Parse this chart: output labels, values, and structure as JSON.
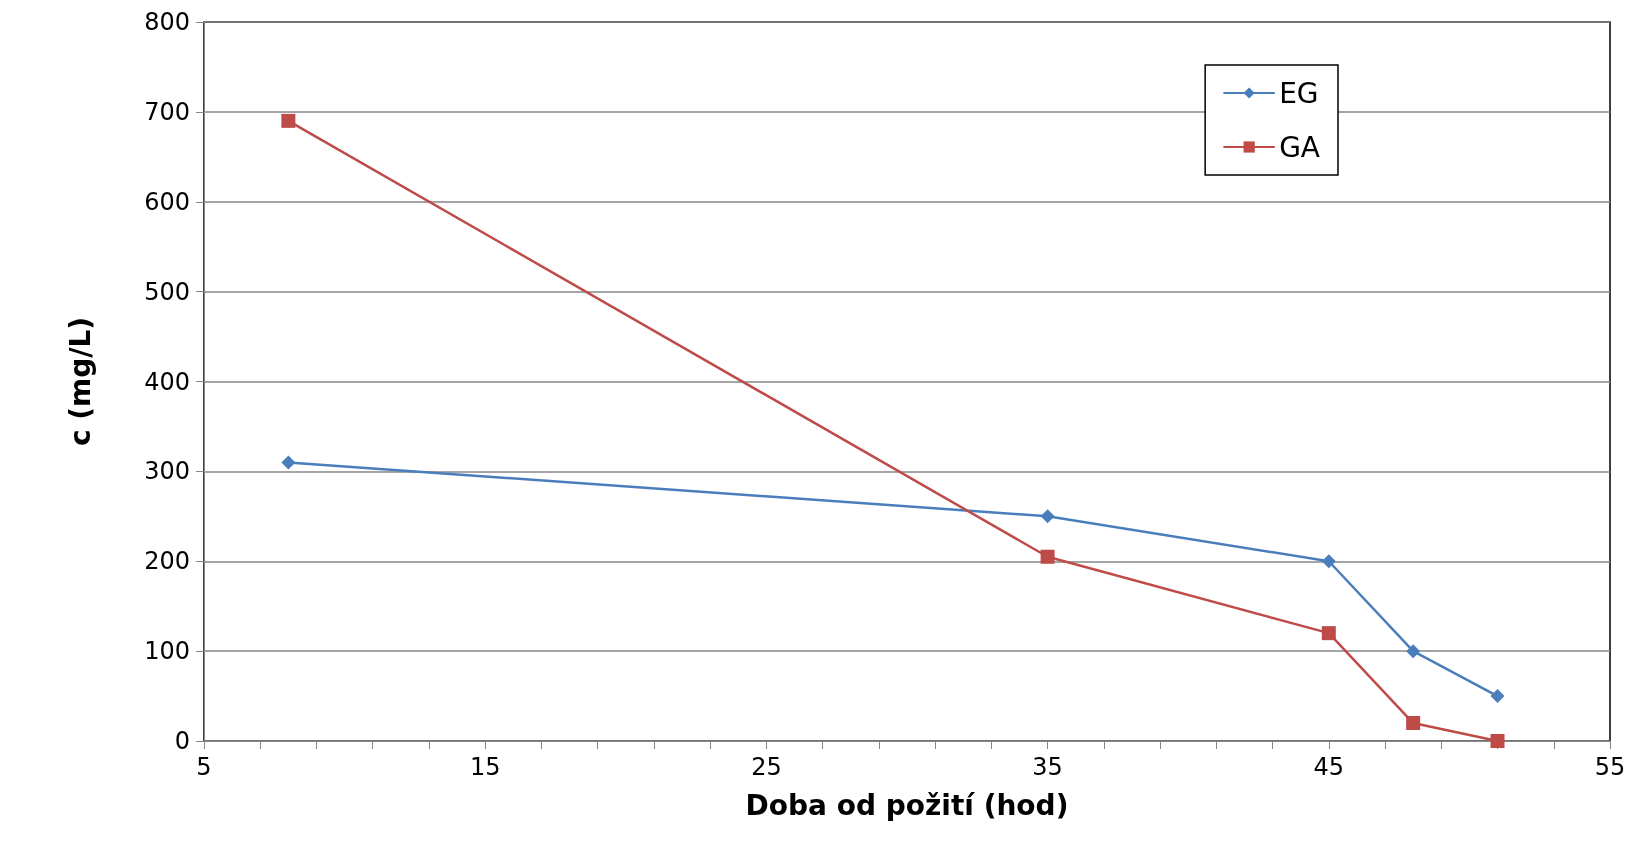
{
  "chart_data": {
    "type": "line",
    "xlabel": "Doba od požití (hod)",
    "ylabel": "c (mg/L)",
    "series": [
      {
        "name": "EG",
        "color": "#4a7ebb",
        "marker": "diamond",
        "x": [
          8,
          35,
          45,
          48,
          51
        ],
        "values": [
          310,
          250,
          200,
          100,
          50
        ]
      },
      {
        "name": "GA",
        "color": "#be4b48",
        "marker": "square",
        "x": [
          8,
          35,
          45,
          48,
          51
        ],
        "values": [
          690,
          205,
          120,
          20,
          0
        ]
      }
    ],
    "xlim": [
      5,
      55
    ],
    "xticks": [
      5,
      {
        "value": 7,
        "label": null
      },
      {
        "value": 9,
        "label": null
      },
      {
        "value": 11,
        "label": null
      },
      {
        "value": 13,
        "label": null
      },
      15,
      {
        "value": 17,
        "label": null
      },
      {
        "value": 19,
        "label": null
      },
      {
        "value": 21,
        "label": null
      },
      {
        "value": 23,
        "label": null
      },
      25,
      {
        "value": 27,
        "label": null
      },
      {
        "value": 29,
        "label": null
      },
      {
        "value": 31,
        "label": null
      },
      {
        "value": 33,
        "label": null
      },
      35,
      {
        "value": 37,
        "label": null
      },
      {
        "value": 39,
        "label": null
      },
      {
        "value": 41,
        "label": null
      },
      {
        "value": 43,
        "label": null
      },
      45,
      {
        "value": 47,
        "label": null
      },
      {
        "value": 49,
        "label": null
      },
      {
        "value": 51,
        "label": null
      },
      {
        "value": 53,
        "label": null
      },
      55
    ],
    "ylim": [
      0,
      800
    ],
    "yticks": [
      0,
      100,
      200,
      300,
      400,
      500,
      600,
      700,
      800
    ],
    "grid": "y",
    "legend": "top right",
    "line_style": "solid"
  }
}
